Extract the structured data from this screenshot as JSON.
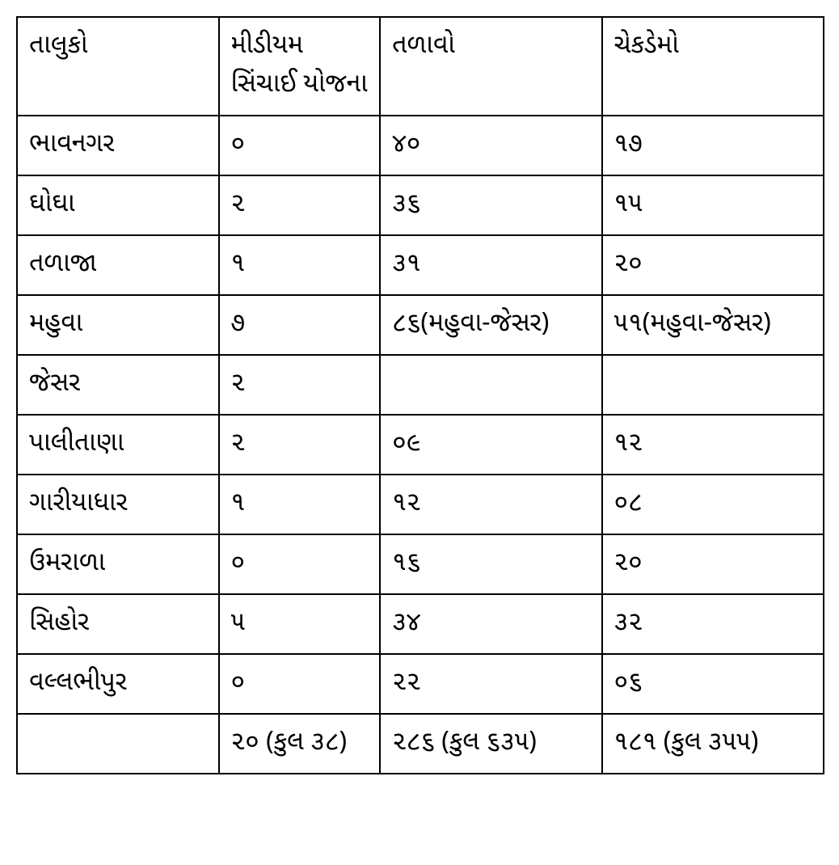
{
  "table": {
    "columns": [
      "તાલુકો",
      "મીડીયમ સિંચાઈ યોજના",
      "તળાવો",
      "ચેકડેમો"
    ],
    "rows": [
      [
        "ભાવનગર",
        "૦",
        "૪૦",
        "૧૭"
      ],
      [
        "ઘોઘા",
        "૨",
        "૩૬",
        "૧૫"
      ],
      [
        "તળાજા",
        "૧",
        "૩૧",
        "૨૦"
      ],
      [
        "મહુવા",
        "૭",
        "૮૬(મહુવા-જેસર)",
        "૫૧(મહુવા-જેસર)"
      ],
      [
        "જેસર",
        "૨",
        "",
        ""
      ],
      [
        "પાલીતાણા",
        "૨",
        "૦૯",
        "૧૨"
      ],
      [
        "ગારીયાધાર",
        "૧",
        "૧૨",
        "૦૮"
      ],
      [
        "ઉમરાળા",
        "૦",
        "૧૬",
        "૨૦"
      ],
      [
        "સિહોર",
        "૫",
        "૩૪",
        "૩૨"
      ],
      [
        "વલ્લભીપુર",
        "૦",
        "૨૨",
        "૦૬"
      ],
      [
        "",
        "૨૦ (કુલ ૩૮)",
        "૨૮૬ (કુલ ૬૩૫)",
        "૧૮૧ (કુલ ૩૫૫)"
      ]
    ],
    "border_color": "#000000",
    "text_color": "#000000",
    "background_color": "#ffffff",
    "font_size": 32,
    "cell_padding": 12,
    "col_widths": [
      "25%",
      "20%",
      "27.5%",
      "27.5%"
    ]
  }
}
